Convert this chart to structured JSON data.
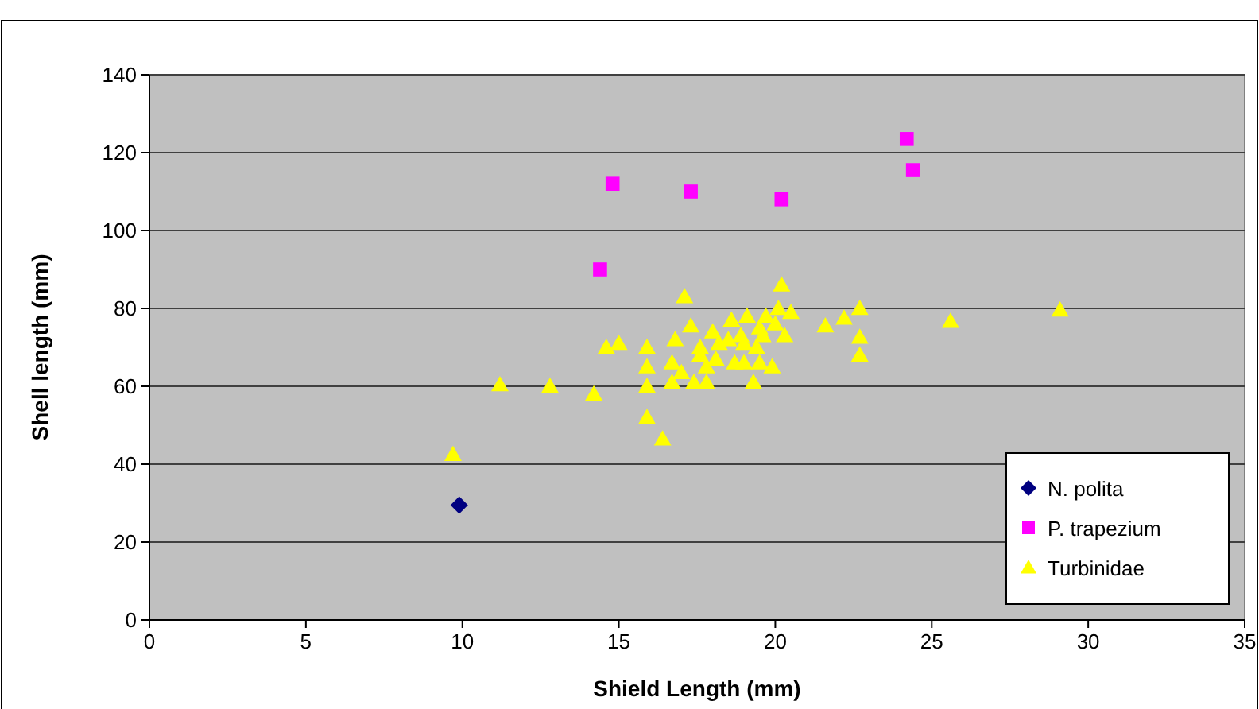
{
  "chart_data": {
    "type": "scatter",
    "xlabel": "Shield Length (mm)",
    "ylabel": "Shell length (mm)",
    "xlim": [
      0,
      35
    ],
    "xticks": [
      0,
      5,
      10,
      15,
      20,
      25,
      30,
      35
    ],
    "ylim": [
      0,
      140
    ],
    "yticks": [
      0,
      20,
      40,
      60,
      80,
      100,
      120,
      140
    ],
    "grid": "y",
    "legend": "bottom right",
    "series": [
      {
        "name": "N. polita",
        "color": "#000080",
        "marker": "diamond",
        "x": [
          9.9
        ],
        "values": [
          29.5
        ]
      },
      {
        "name": "P. trapezium",
        "color": "#ff00ff",
        "marker": "square",
        "x": [
          14.8,
          14.4,
          17.3,
          20.2,
          24.2,
          24.4
        ],
        "values": [
          112,
          90,
          110,
          108,
          123.5,
          115.5
        ]
      },
      {
        "name": "Turbinidae",
        "color": "#ffff00",
        "marker": "triangle",
        "x": [
          9.7,
          11.2,
          12.8,
          14.2,
          14.6,
          15.0,
          15.9,
          15.9,
          15.9,
          15.9,
          16.4,
          17.1,
          16.8,
          16.7,
          17.0,
          17.3,
          16.7,
          17.4,
          17.6,
          17.6,
          17.8,
          17.8,
          18.0,
          18.2,
          18.1,
          18.5,
          18.6,
          18.7,
          19.0,
          18.9,
          19.0,
          19.1,
          19.5,
          19.6,
          19.4,
          19.5,
          19.3,
          19.9,
          19.7,
          20.1,
          20.3,
          20.0,
          20.5,
          20.2,
          21.6,
          22.2,
          22.7,
          22.7,
          22.7,
          25.6,
          29.1
        ],
        "values": [
          42.5,
          60.4,
          60,
          58,
          70,
          71,
          70,
          60,
          65,
          52,
          46.5,
          83,
          72,
          66,
          63.5,
          75.5,
          61,
          61,
          68,
          70,
          65,
          61,
          74,
          71,
          67,
          72,
          77,
          66,
          66,
          73,
          71,
          78,
          75,
          73,
          70,
          66,
          61,
          65,
          78,
          80,
          73,
          76,
          79,
          86,
          75.5,
          77.5,
          80,
          72.6,
          68,
          76.7,
          79.6
        ]
      }
    ]
  }
}
